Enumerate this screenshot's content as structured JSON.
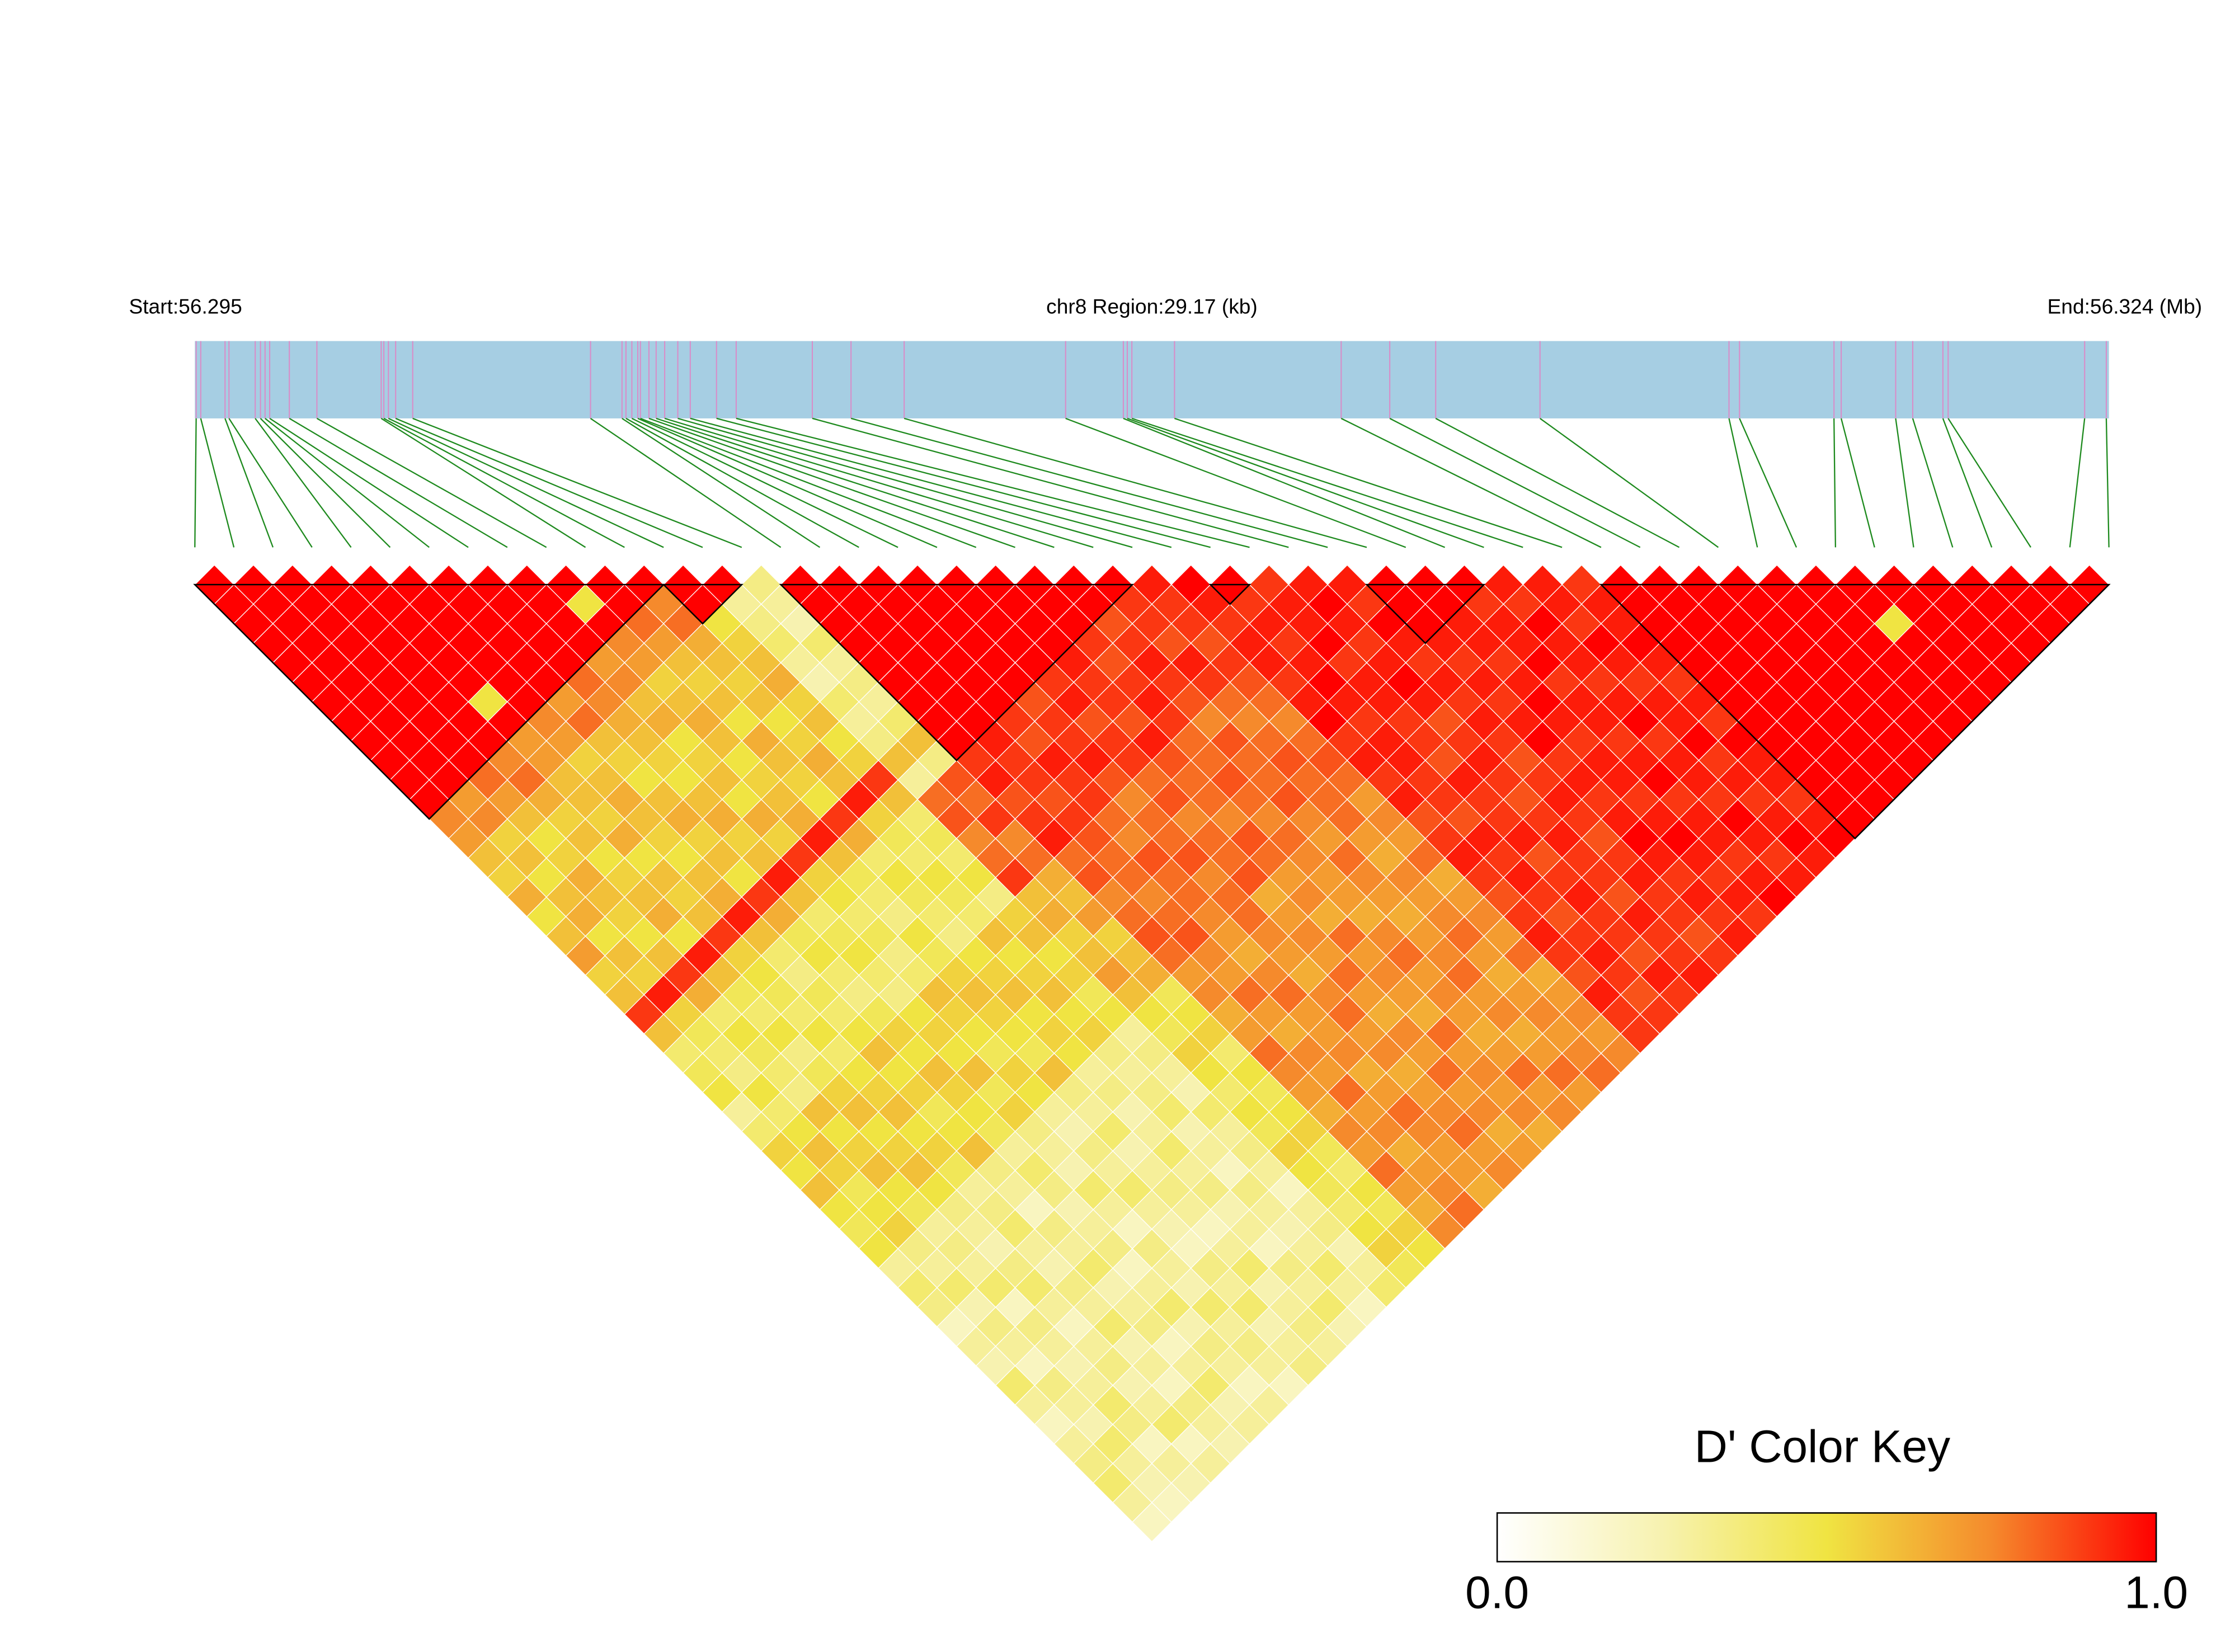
{
  "chart_data": {
    "type": "ldheatmap",
    "start_label": "Start:56.295",
    "region_label": "chr8 Region:29.17 (kb)",
    "end_label": "End:56.324 (Mb)",
    "xlim": [
      0,
      29.17
    ],
    "snp_positions": [
      0.02,
      0.09,
      0.46,
      0.52,
      0.92,
      1.0,
      1.07,
      1.14,
      1.44,
      1.86,
      2.84,
      2.88,
      2.95,
      3.06,
      3.32,
      6.03,
      6.51,
      6.57,
      6.66,
      6.75,
      6.79,
      6.92,
      7.03,
      7.16,
      7.36,
      7.55,
      7.95,
      8.25,
      9.41,
      10.0,
      10.81,
      13.27,
      14.15,
      14.21,
      14.28,
      14.93,
      17.47,
      18.21,
      18.91,
      20.5,
      23.38,
      23.54,
      24.98,
      25.09,
      25.92,
      26.18,
      26.64,
      26.72,
      28.8,
      29.13
    ],
    "dprime": [
      [
        1,
        1,
        1,
        1,
        1,
        1,
        1,
        1,
        1,
        1,
        1,
        1,
        0.75,
        0.7,
        0.6,
        0.55,
        0.65,
        0.5,
        0.6,
        0.7,
        0.55,
        0.6,
        0.9,
        0.6,
        0.4,
        0.45,
        0.5,
        0.3,
        0.4,
        0.55,
        0.5,
        0.6,
        0.5,
        0.45,
        0.5,
        0.3,
        0.4,
        0.35,
        0.2,
        0.3,
        0.25,
        0.4,
        0.3,
        0.2,
        0.3,
        0.35,
        0.4,
        0.3,
        0.2
      ],
      [
        1,
        1,
        1,
        1,
        1,
        1,
        1,
        1,
        1,
        1,
        1,
        0.7,
        0.75,
        0.55,
        0.6,
        0.5,
        0.6,
        0.65,
        0.5,
        0.6,
        0.55,
        0.95,
        0.55,
        0.45,
        0.4,
        0.35,
        0.5,
        0.4,
        0.5,
        0.6,
        0.55,
        0.45,
        0.5,
        0.55,
        0.35,
        0.3,
        0.4,
        0.25,
        0.35,
        0.3,
        0.2,
        0.35,
        0.3,
        0.25,
        0.4,
        0.3,
        0.25,
        0.2
      ],
      [
        1,
        1,
        1,
        1,
        1,
        1,
        1,
        1,
        1,
        1,
        0.8,
        0.7,
        0.6,
        0.5,
        0.55,
        0.65,
        0.6,
        0.55,
        0.5,
        0.6,
        0.9,
        0.65,
        0.4,
        0.5,
        0.45,
        0.4,
        0.35,
        0.6,
        0.5,
        0.55,
        0.6,
        0.5,
        0.45,
        0.3,
        0.35,
        0.3,
        0.4,
        0.2,
        0.35,
        0.3,
        0.25,
        0.3,
        0.4,
        0.35,
        0.2,
        0.3,
        0.25
      ],
      [
        1,
        1,
        1,
        1,
        1,
        1,
        1,
        1,
        1,
        0.75,
        0.8,
        0.65,
        0.55,
        0.6,
        0.5,
        0.55,
        0.6,
        0.65,
        0.5,
        0.95,
        0.6,
        0.45,
        0.4,
        0.5,
        0.35,
        0.45,
        0.55,
        0.6,
        0.5,
        0.55,
        0.6,
        0.5,
        0.35,
        0.3,
        0.25,
        0.35,
        0.4,
        0.3,
        0.2,
        0.3,
        0.35,
        0.25,
        0.3,
        0.4,
        0.2,
        0.3
      ],
      [
        1,
        1,
        1,
        1,
        1,
        1,
        0.5,
        1,
        0.7,
        0.7,
        0.6,
        0.6,
        0.55,
        0.65,
        0.5,
        0.6,
        0.55,
        0.6,
        0.9,
        0.55,
        0.5,
        0.45,
        0.4,
        0.5,
        0.4,
        0.5,
        0.55,
        0.6,
        0.5,
        0.55,
        0.45,
        0.3,
        0.35,
        0.4,
        0.3,
        0.25,
        0.35,
        0.3,
        0.4,
        0.25,
        0.3,
        0.2,
        0.35,
        0.3,
        0.25
      ],
      [
        1,
        1,
        1,
        1,
        1,
        1,
        1,
        0.75,
        0.7,
        0.55,
        0.6,
        0.65,
        0.6,
        0.55,
        0.5,
        0.6,
        0.65,
        0.95,
        0.6,
        0.4,
        0.35,
        0.45,
        0.4,
        0.5,
        0.6,
        0.5,
        0.55,
        0.45,
        0.5,
        0.6,
        0.35,
        0.3,
        0.2,
        0.35,
        0.3,
        0.4,
        0.25,
        0.3,
        0.35,
        0.2,
        0.3,
        0.4,
        0.25,
        0.3
      ],
      [
        1,
        1,
        1,
        1,
        1,
        1,
        0.7,
        0.8,
        0.6,
        0.55,
        0.5,
        0.6,
        0.65,
        0.55,
        0.6,
        0.5,
        0.9,
        0.65,
        0.45,
        0.5,
        0.4,
        0.35,
        0.45,
        0.55,
        0.5,
        0.6,
        0.55,
        0.5,
        0.45,
        0.3,
        0.4,
        0.35,
        0.25,
        0.3,
        0.35,
        0.2,
        0.3,
        0.4,
        0.25,
        0.35,
        0.3,
        0.2,
        0.3
      ],
      [
        1,
        1,
        1,
        1,
        1,
        0.8,
        0.75,
        0.65,
        0.6,
        0.55,
        0.5,
        0.6,
        0.65,
        0.55,
        0.6,
        0.95,
        0.6,
        0.4,
        0.45,
        0.5,
        0.4,
        0.35,
        0.5,
        0.55,
        0.5,
        0.6,
        0.45,
        0.55,
        0.35,
        0.3,
        0.25,
        0.4,
        0.3,
        0.2,
        0.35,
        0.3,
        0.25,
        0.4,
        0.3,
        0.35,
        0.3,
        0.2
      ],
      [
        1,
        1,
        1,
        1,
        0.7,
        0.75,
        0.6,
        0.65,
        0.5,
        0.55,
        0.6,
        0.5,
        0.65,
        0.55,
        0.9,
        0.55,
        0.5,
        0.4,
        0.45,
        0.35,
        0.4,
        0.6,
        0.55,
        0.5,
        0.45,
        0.55,
        0.5,
        0.3,
        0.25,
        0.35,
        0.3,
        0.4,
        0.3,
        0.25,
        0.2,
        0.35,
        0.3,
        0.4,
        0.25,
        0.3,
        0.35
      ],
      [
        1,
        0.5,
        1,
        0.75,
        0.7,
        0.55,
        0.6,
        0.65,
        0.6,
        0.5,
        0.55,
        0.6,
        0.65,
        0.95,
        0.6,
        0.45,
        0.4,
        0.35,
        0.5,
        0.45,
        0.55,
        0.6,
        0.55,
        0.5,
        0.45,
        0.6,
        0.35,
        0.3,
        0.4,
        0.25,
        0.3,
        0.35,
        0.3,
        0.2,
        0.3,
        0.4,
        0.25,
        0.3,
        0.35,
        0.3
      ],
      [
        1,
        1,
        0.8,
        0.7,
        0.6,
        0.55,
        0.6,
        0.5,
        0.65,
        0.6,
        0.55,
        0.5,
        0.9,
        0.65,
        0.4,
        0.5,
        0.45,
        0.4,
        0.35,
        0.5,
        0.55,
        0.6,
        0.5,
        0.55,
        0.5,
        0.3,
        0.35,
        0.25,
        0.3,
        0.4,
        0.3,
        0.35,
        0.25,
        0.3,
        0.2,
        0.35,
        0.3,
        0.4,
        0.25
      ],
      [
        1,
        0.75,
        0.8,
        0.65,
        0.6,
        0.55,
        0.6,
        0.5,
        0.55,
        0.65,
        0.6,
        0.95,
        0.55,
        0.45,
        0.4,
        0.5,
        0.45,
        0.4,
        0.6,
        0.5,
        0.55,
        0.6,
        0.5,
        0.55,
        0.35,
        0.3,
        0.35,
        0.4,
        0.25,
        0.3,
        0.2,
        0.35,
        0.3,
        0.25,
        0.3,
        0.4,
        0.3,
        0.2
      ],
      [
        1,
        1,
        0.5,
        0.55,
        0.6,
        0.65,
        0.55,
        0.6,
        0.5,
        0.55,
        0.9,
        0.6,
        0.4,
        0.45,
        0.4,
        0.5,
        0.35,
        0.55,
        0.6,
        0.5,
        0.55,
        0.45,
        0.5,
        0.3,
        0.35,
        0.3,
        0.25,
        0.4,
        0.3,
        0.35,
        0.3,
        0.2,
        0.3,
        0.35,
        0.25,
        0.3,
        0.4
      ],
      [
        1,
        0.3,
        0.35,
        0.4,
        0.3,
        0.25,
        0.4,
        0.3,
        0.35,
        0.6,
        0.3,
        0.8,
        0.85,
        0.75,
        0.8,
        0.9,
        0.6,
        0.65,
        0.55,
        0.6,
        0.7,
        0.6,
        0.5,
        0.45,
        0.55,
        0.5,
        0.4,
        0.5,
        0.45,
        0.55,
        0.5,
        0.45,
        0.4,
        0.5,
        0.55,
        0.45
      ],
      [
        0.35,
        0.3,
        0.25,
        0.4,
        0.3,
        0.35,
        0.3,
        0.4,
        0.6,
        0.35,
        0.85,
        0.8,
        0.9,
        0.75,
        0.8,
        0.65,
        0.6,
        0.7,
        0.55,
        0.6,
        0.65,
        0.45,
        0.5,
        0.55,
        0.4,
        0.5,
        0.45,
        0.5,
        0.55,
        0.45,
        0.4,
        0.5,
        0.45,
        0.55,
        0.5
      ],
      [
        1,
        1,
        1,
        1,
        1,
        1,
        1,
        1,
        1,
        0.9,
        0.95,
        0.85,
        0.9,
        0.95,
        0.8,
        0.85,
        0.75,
        0.8,
        0.85,
        0.8,
        0.7,
        0.75,
        0.65,
        0.7,
        0.8,
        0.75,
        0.7,
        0.65,
        0.75,
        0.7,
        0.8,
        0.7,
        0.65,
        0.75
      ],
      [
        1,
        1,
        1,
        1,
        1,
        1,
        1,
        1,
        0.95,
        0.9,
        0.9,
        0.85,
        0.9,
        0.85,
        0.8,
        0.8,
        0.75,
        0.8,
        0.85,
        0.75,
        0.7,
        0.8,
        0.7,
        0.65,
        0.75,
        0.7,
        0.8,
        0.7,
        0.75,
        0.65,
        0.7,
        0.75,
        0.8
      ],
      [
        1,
        1,
        1,
        1,
        1,
        1,
        1,
        0.9,
        0.85,
        0.95,
        0.9,
        0.9,
        0.8,
        0.75,
        0.85,
        0.8,
        0.8,
        0.75,
        0.7,
        0.65,
        0.75,
        0.8,
        0.7,
        0.7,
        0.75,
        0.65,
        0.7,
        0.8,
        0.75,
        0.7,
        0.7,
        0.65
      ],
      [
        1,
        1,
        1,
        1,
        1,
        1,
        0.85,
        0.9,
        0.9,
        0.95,
        0.85,
        0.75,
        0.8,
        0.8,
        0.85,
        0.75,
        0.8,
        0.8,
        0.75,
        0.7,
        0.65,
        0.75,
        0.8,
        0.7,
        0.75,
        0.65,
        0.7,
        0.75,
        0.8,
        0.7,
        0.75
      ],
      [
        1,
        1,
        1,
        1,
        1,
        0.9,
        0.95,
        0.85,
        0.9,
        0.9,
        0.8,
        0.85,
        0.75,
        0.8,
        0.8,
        0.85,
        0.65,
        0.7,
        0.75,
        0.7,
        0.8,
        0.7,
        0.65,
        0.75,
        0.7,
        0.8,
        0.7,
        0.75,
        0.65,
        0.7
      ],
      [
        1,
        1,
        1,
        1,
        0.95,
        0.9,
        0.9,
        0.85,
        0.95,
        0.85,
        0.8,
        0.8,
        0.75,
        0.85,
        0.8,
        0.7,
        0.75,
        0.65,
        0.8,
        0.7,
        0.75,
        0.7,
        0.65,
        0.8,
        0.7,
        0.75,
        0.7,
        0.75,
        0.65
      ],
      [
        1,
        1,
        1,
        0.9,
        0.85,
        0.9,
        0.95,
        0.9,
        0.8,
        0.8,
        0.85,
        0.8,
        0.75,
        0.8,
        0.75,
        0.7,
        0.7,
        0.65,
        0.75,
        0.8,
        0.7,
        0.75,
        0.7,
        0.65,
        0.7,
        0.8,
        0.7,
        0.75
      ],
      [
        1,
        1,
        0.85,
        0.9,
        0.95,
        0.9,
        0.85,
        0.75,
        0.85,
        0.8,
        0.8,
        0.85,
        0.75,
        0.7,
        0.8,
        0.75,
        0.7,
        0.65,
        0.7,
        0.75,
        0.8,
        0.7,
        0.75,
        0.65,
        0.7,
        0.8,
        0.7
      ],
      [
        1,
        0.9,
        0.9,
        0.85,
        0.95,
        0.9,
        0.8,
        0.75,
        0.8,
        0.85,
        0.8,
        0.8,
        0.8,
        0.7,
        0.65,
        0.75,
        0.7,
        0.75,
        0.8,
        0.7,
        0.65,
        0.7,
        0.75,
        0.7,
        0.75,
        0.8
      ],
      [
        0.95,
        0.9,
        0.9,
        0.85,
        0.9,
        0.85,
        0.8,
        0.75,
        0.8,
        0.85,
        0.8,
        0.7,
        0.75,
        0.7,
        0.8,
        0.65,
        0.7,
        0.75,
        0.7,
        0.8,
        0.65,
        0.7,
        0.75,
        0.7,
        0.75
      ],
      [
        1,
        0.95,
        0.9,
        0.95,
        0.95,
        0.9,
        0.95,
        1,
        0.9,
        0.95,
        0.9,
        0.95,
        0.85,
        0.9,
        0.95,
        0.9,
        0.85,
        0.9,
        0.95,
        0.9,
        0.85,
        0.95,
        0.9,
        0.9
      ],
      [
        1,
        0.9,
        0.95,
        0.9,
        0.95,
        1,
        0.95,
        0.9,
        0.95,
        0.95,
        0.9,
        0.9,
        0.85,
        0.95,
        0.9,
        0.95,
        0.9,
        0.85,
        0.9,
        0.95,
        0.9,
        0.85,
        0.9
      ],
      [
        0.9,
        0.95,
        0.95,
        1,
        0.9,
        0.95,
        0.95,
        0.9,
        0.9,
        0.85,
        0.95,
        0.9,
        0.9,
        0.95,
        0.85,
        0.9,
        0.95,
        0.9,
        0.9,
        0.85,
        0.95,
        0.9
      ],
      [
        0.95,
        1,
        0.95,
        0.9,
        0.95,
        1,
        0.95,
        0.85,
        0.9,
        0.95,
        0.9,
        0.85,
        0.9,
        0.95,
        0.9,
        0.9,
        0.85,
        0.95,
        0.9,
        0.9,
        0.95
      ],
      [
        0.95,
        0.9,
        1,
        0.95,
        0.9,
        0.95,
        0.9,
        0.95,
        0.9,
        0.85,
        0.9,
        0.95,
        0.9,
        0.85,
        0.9,
        0.95,
        0.9,
        0.9,
        0.85,
        0.9
      ],
      [
        1,
        1,
        1,
        0.95,
        0.9,
        0.95,
        0.9,
        0.95,
        1,
        0.9,
        0.95,
        0.9,
        0.95,
        1,
        0.95,
        0.9,
        0.95,
        0.9,
        0.95
      ],
      [
        1,
        1,
        0.95,
        0.95,
        0.9,
        0.95,
        1,
        0.95,
        0.9,
        0.95,
        0.95,
        0.9,
        0.95,
        1,
        0.95,
        0.9,
        0.95,
        0.9
      ],
      [
        1,
        0.9,
        0.95,
        0.95,
        1,
        0.9,
        0.95,
        0.95,
        0.9,
        0.95,
        1,
        0.9,
        0.95,
        0.95,
        0.9,
        0.95,
        1
      ],
      [
        0.95,
        0.9,
        1,
        0.95,
        0.95,
        0.9,
        0.95,
        1,
        0.9,
        0.95,
        0.95,
        0.9,
        1,
        0.95,
        0.9,
        0.95
      ],
      [
        0.95,
        0.95,
        0.9,
        1,
        0.95,
        0.9,
        0.95,
        0.95,
        1,
        0.9,
        0.95,
        0.9,
        0.95,
        1,
        0.95
      ],
      [
        0.9,
        0.95,
        0.95,
        1,
        0.95,
        0.9,
        0.95,
        0.9,
        1,
        0.95,
        0.95,
        0.9,
        0.95,
        1
      ],
      [
        1,
        1,
        1,
        1,
        1,
        1,
        1,
        1,
        1,
        1,
        1,
        1,
        1
      ],
      [
        1,
        1,
        1,
        1,
        1,
        1,
        1,
        1,
        1,
        1,
        1,
        1
      ],
      [
        1,
        1,
        1,
        1,
        1,
        1,
        1,
        1,
        1,
        1,
        1
      ],
      [
        1,
        1,
        1,
        1,
        1,
        1,
        1,
        1,
        1,
        1
      ],
      [
        1,
        1,
        1,
        1,
        1,
        1,
        1,
        1,
        1
      ],
      [
        1,
        1,
        1,
        1,
        1,
        1,
        1,
        1
      ],
      [
        1,
        1,
        0.5,
        1,
        1,
        1,
        1
      ],
      [
        1,
        1,
        1,
        1,
        1,
        1
      ],
      [
        1,
        1,
        1,
        1,
        1
      ],
      [
        1,
        1,
        1,
        1
      ],
      [
        1,
        1,
        1
      ],
      [
        1,
        1
      ],
      [
        1
      ]
    ],
    "blocks": [
      [
        0,
        12
      ],
      [
        12,
        14
      ],
      [
        15,
        24
      ],
      [
        26,
        27
      ],
      [
        30,
        33
      ],
      [
        36,
        49
      ]
    ],
    "key_title": "D' Color Key",
    "key_lim": [
      0,
      1
    ],
    "key_ticks": [
      {
        "value": 0,
        "label": "0.0"
      },
      {
        "value": 1,
        "label": "1.0"
      }
    ],
    "key_colors": [
      "#ffffff",
      "#f7f2b0",
      "#f0e442",
      "#f58a2c",
      "#ff0000"
    ],
    "bar_color": "#a6cee3",
    "marker_color": "#d98cc8",
    "connector_color": "#1e8a1e",
    "block_outline_color": "#000000",
    "cell_border_color": "#ffffff"
  }
}
